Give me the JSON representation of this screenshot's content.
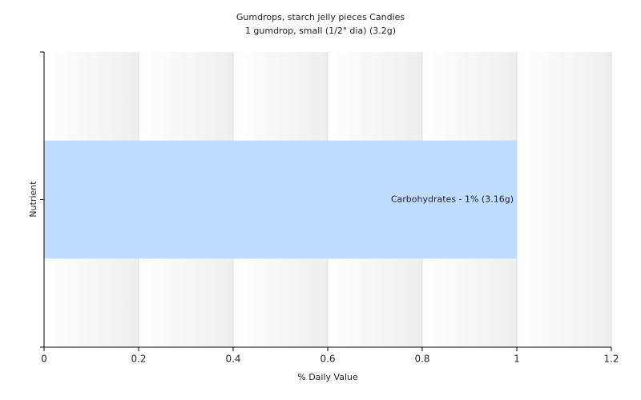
{
  "chart_data": {
    "type": "bar",
    "orientation": "horizontal",
    "title": "Gumdrops, starch jelly pieces Candies",
    "subtitle": "1 gumdrop, small (1/2\" dia) (3.2g)",
    "x_label": "% Daily Value",
    "y_label": "Nutrient",
    "categories": [
      null
    ],
    "values": [
      1
    ],
    "value_labels": [
      "Carbohydrates - 1% (3.16g)"
    ],
    "color": "#bfdbff",
    "xlim": [
      0,
      1.2
    ],
    "xticks": [
      0,
      0.2,
      0.4,
      0.6,
      0.8,
      1,
      1.2
    ],
    "grid": true
  }
}
